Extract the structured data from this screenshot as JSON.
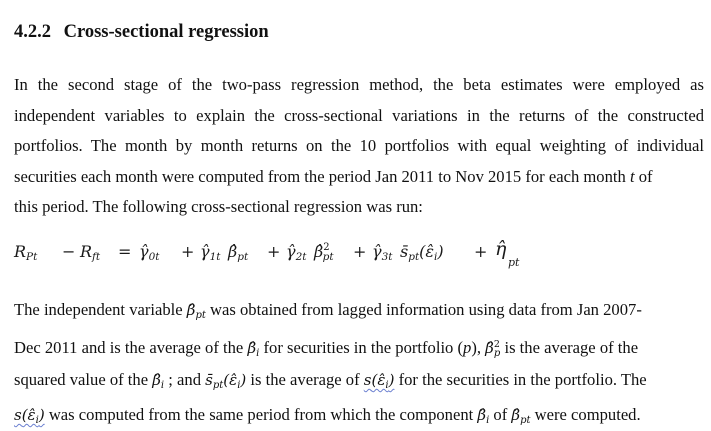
{
  "section": {
    "number": "4.2.2",
    "title": "Cross-sectional regression"
  },
  "paragraph1": {
    "lines": [
      "In the second stage of the two-pass regression method, the beta estimates were employed as",
      "independent variables to explain the cross-sectional variations in the returns of the constructed",
      "portfolios. The month by month returns on the 10 portfolios with equal weighting of individual",
      "securities each month were computed from the period Jan 2011 to Nov 2015 for each month",
      "this period. The following cross-sectional regression was run:"
    ],
    "line4_var": "t",
    "line4_tail": "of"
  },
  "equation": {
    "lhs_1": "R",
    "lhs_1_sub": "Pt",
    "minus": "−",
    "lhs_2": "R",
    "lhs_2_sub": "ft",
    "equals": "=",
    "term0": "γ̂",
    "term0_sub": "0t",
    "plus": "+",
    "term1": "γ̂",
    "term1_sub": "1t",
    "beta1": "β̂",
    "beta1_sub": "pt",
    "term2": "γ̂",
    "term2_sub": "2t",
    "beta2": "β̂",
    "beta2_sup": "2",
    "beta2_sub": "pt",
    "term3": "γ̂",
    "term3_sub": "3t",
    "sbar": "s̄",
    "sbar_sub": "pt",
    "sbar_arg": "(ε̂",
    "sbar_arg_sub": "i",
    "sbar_close": ")",
    "eta": "η̂",
    "eta_sub": "pt"
  },
  "paragraph2": {
    "l1_a": "The independent variable",
    "l1_var": "β̂",
    "l1_var_sub": "pt",
    "l1_b": "was obtained from lagged information using data from Jan 2007-",
    "l2_a": "Dec 2011 and is the average of the",
    "l2_var": "β̂",
    "l2_var_sub": "i",
    "l2_b": "for securities in the portfolio (",
    "l2_p": "p",
    "l2_c": "),",
    "l2_var2": "β̂",
    "l2_var2_sup": "2",
    "l2_var2_sub": "p",
    "l2_d": "is the average of the",
    "l3_a": "squared value of the",
    "l3_var": "β̂",
    "l3_var_sub": "i",
    "l3_b": "; and",
    "l3_var2": "s̄",
    "l3_var2_sub": "pt",
    "l3_var2_arg": "(ε̂",
    "l3_var2_arg_sub": "i",
    "l3_var2_close": ")",
    "l3_c": "is the average of",
    "l3_var3": "s",
    "l3_var3_arg": "(ε̂",
    "l3_var3_arg_sub": "i",
    "l3_var3_close": ")",
    "l3_d": "for the securities in the portfolio. The",
    "l4_var": "s",
    "l4_var_arg": "(ε̂",
    "l4_var_arg_sub": "i",
    "l4_var_close": ")",
    "l4_a": "was computed from the same period from which the component",
    "l4_var2": "β̂",
    "l4_var2_sub": "i",
    "l4_b": "of",
    "l4_var3": "β̂",
    "l4_var3_sub": "pt",
    "l4_c": "were computed."
  }
}
